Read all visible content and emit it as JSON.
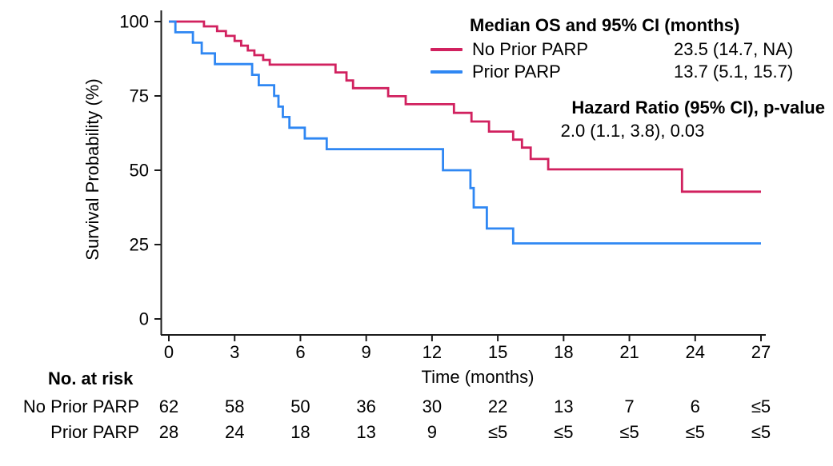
{
  "figure": {
    "background": "#ffffff",
    "text_color": "#000000",
    "axis_color": "#1a1a1a"
  },
  "chart_data": {
    "type": "line",
    "subtype": "kaplan-meier-step-curve",
    "title": "",
    "xlabel": "Time (months)",
    "ylabel": "Survival Probability (%)",
    "xlim": [
      0,
      27
    ],
    "ylim": [
      0,
      100
    ],
    "xticks": [
      0,
      3,
      6,
      9,
      12,
      15,
      18,
      21,
      24,
      27
    ],
    "yticks": [
      0,
      25,
      50,
      75,
      100
    ],
    "grid": false,
    "legend_position": "top-right",
    "series": [
      {
        "name": "No Prior PARP",
        "color": "#d1215f",
        "median_os_95ci": "23.5 (14.7, NA)",
        "end_time": 27,
        "steps": [
          [
            0,
            100
          ],
          [
            1.6,
            98.4
          ],
          [
            2.2,
            96.8
          ],
          [
            2.6,
            95.2
          ],
          [
            3.0,
            93.5
          ],
          [
            3.3,
            91.9
          ],
          [
            3.6,
            90.3
          ],
          [
            3.9,
            88.7
          ],
          [
            4.3,
            87.1
          ],
          [
            4.6,
            85.5
          ],
          [
            7.6,
            82.9
          ],
          [
            8.1,
            80.2
          ],
          [
            8.4,
            77.6
          ],
          [
            10.0,
            74.9
          ],
          [
            10.8,
            72.2
          ],
          [
            13.0,
            69.3
          ],
          [
            13.8,
            66.4
          ],
          [
            14.6,
            63.0
          ],
          [
            15.7,
            60.3
          ],
          [
            16.1,
            57.6
          ],
          [
            16.5,
            53.8
          ],
          [
            17.3,
            50.3
          ],
          [
            23.4,
            42.8
          ]
        ]
      },
      {
        "name": "Prior PARP",
        "color": "#2f87f3",
        "median_os_95ci": "13.7 (5.1, 15.7)",
        "end_time": 27,
        "steps": [
          [
            0,
            100
          ],
          [
            0.3,
            96.4
          ],
          [
            1.1,
            92.9
          ],
          [
            1.5,
            89.3
          ],
          [
            2.1,
            85.7
          ],
          [
            3.8,
            82.1
          ],
          [
            4.1,
            78.6
          ],
          [
            4.8,
            75.0
          ],
          [
            5.0,
            71.4
          ],
          [
            5.2,
            67.9
          ],
          [
            5.5,
            64.3
          ],
          [
            6.2,
            60.7
          ],
          [
            7.2,
            57.1
          ],
          [
            12.5,
            50.0
          ],
          [
            13.75,
            44.0
          ],
          [
            13.9,
            37.5
          ],
          [
            14.5,
            30.4
          ],
          [
            15.7,
            25.4
          ]
        ]
      }
    ],
    "legend": {
      "title": "Median OS and 95% CI (months)",
      "entries": [
        {
          "label": "No Prior PARP",
          "value": "23.5 (14.7, NA)"
        },
        {
          "label": "Prior PARP",
          "value": "13.7 (5.1, 15.7)"
        }
      ]
    },
    "hazard_ratio": {
      "title": "Hazard Ratio (95% CI), p-value",
      "value": "2.0 (1.1, 3.8), 0.03"
    },
    "risk_table": {
      "title": "No. at risk",
      "times": [
        0,
        3,
        6,
        9,
        12,
        15,
        18,
        21,
        24,
        27
      ],
      "rows": [
        {
          "label": "No Prior PARP",
          "values": [
            "62",
            "58",
            "50",
            "36",
            "30",
            "22",
            "13",
            "7",
            "6",
            "≤5"
          ]
        },
        {
          "label": "Prior PARP",
          "values": [
            "28",
            "24",
            "18",
            "13",
            "9",
            "≤5",
            "≤5",
            "≤5",
            "≤5",
            "≤5"
          ]
        }
      ]
    }
  }
}
